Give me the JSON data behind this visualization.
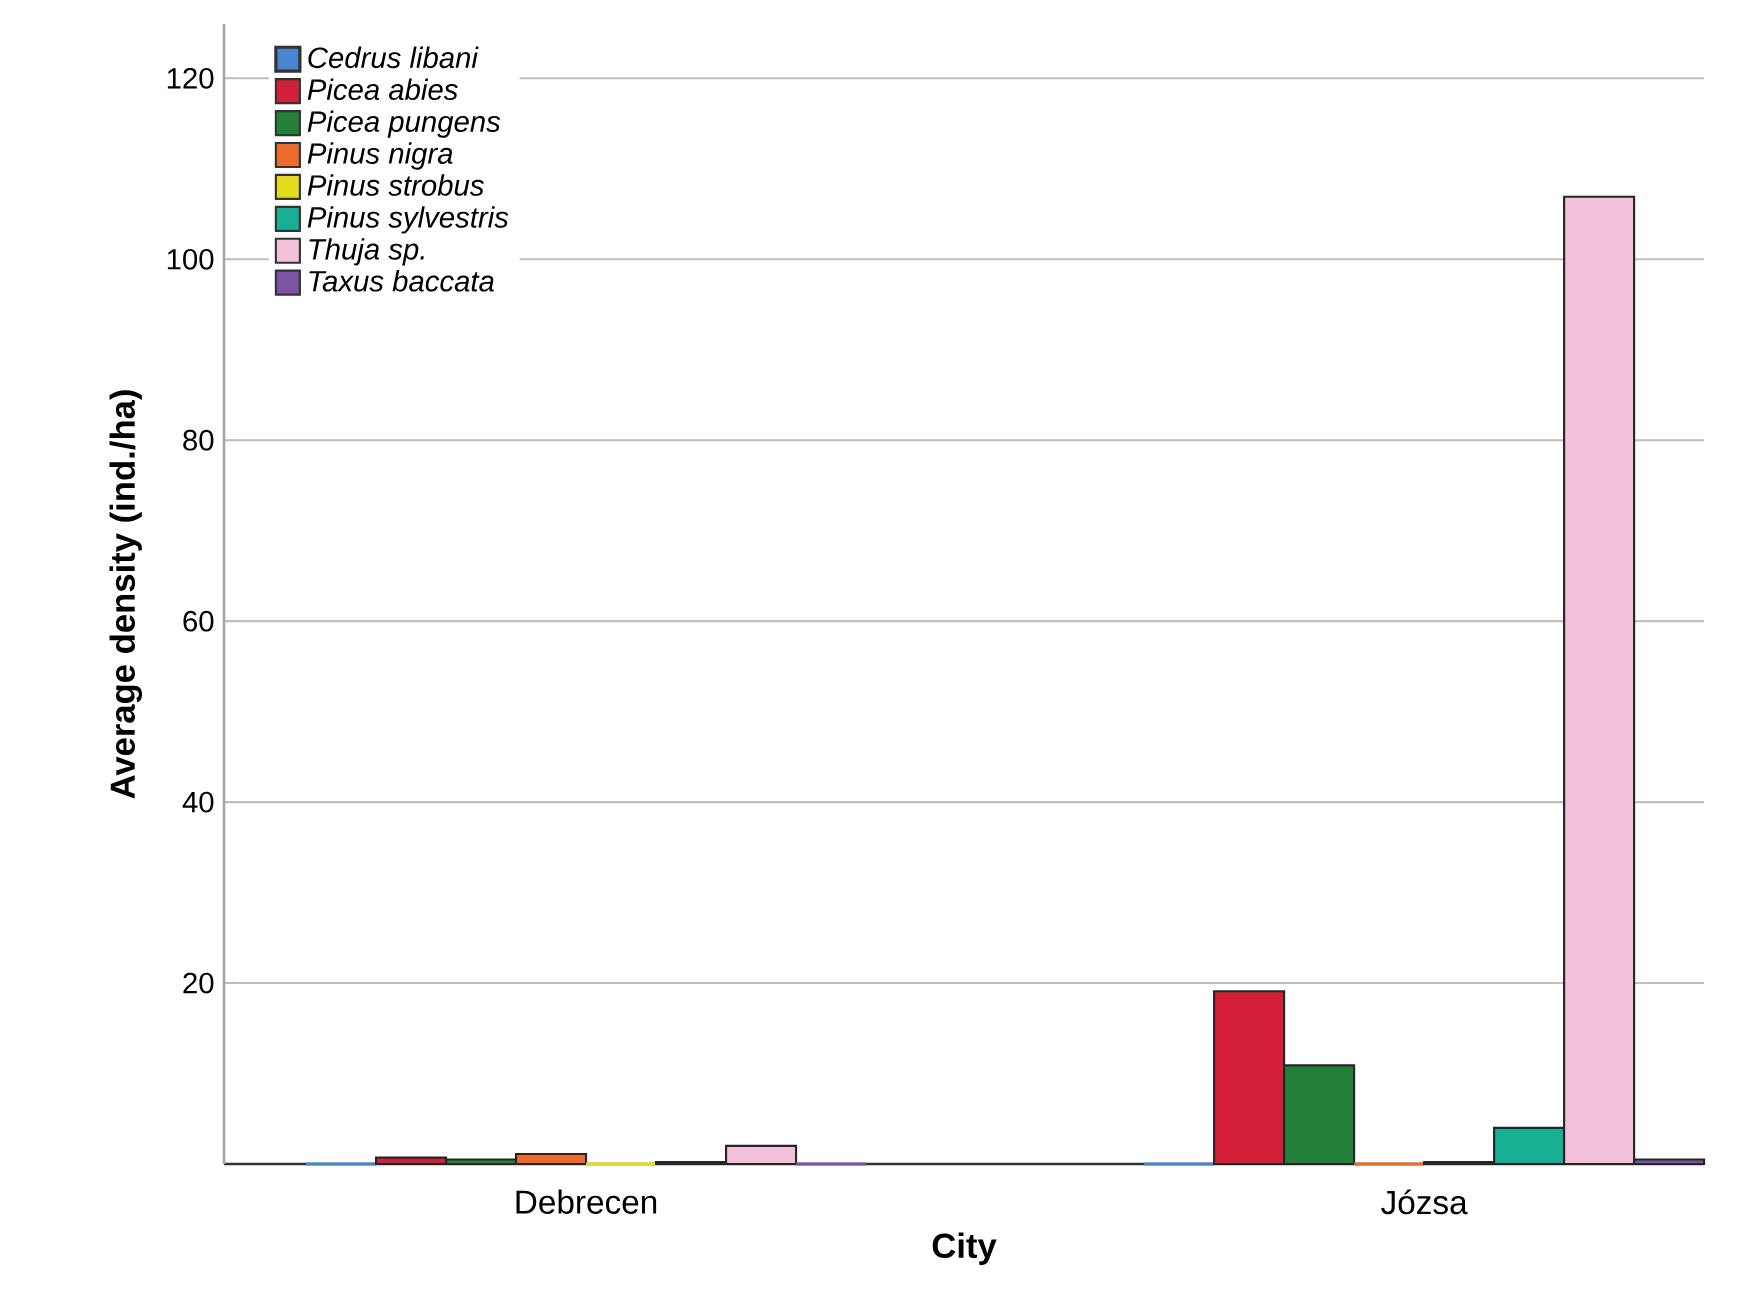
{
  "chart_data": {
    "type": "bar",
    "xlabel": "City",
    "ylabel": "Average density (ind./ha)",
    "categories": [
      "Debrecen",
      "Józsa"
    ],
    "series": [
      {
        "name": "Cedrus libani",
        "color": "#4a86d0",
        "values": [
          0,
          0
        ]
      },
      {
        "name": "Picea abies",
        "color": "#d31f37",
        "values": [
          0.7,
          19.1
        ]
      },
      {
        "name": "Picea pungens",
        "color": "#228039",
        "values": [
          0.5,
          10.9
        ]
      },
      {
        "name": "Pinus nigra",
        "color": "#ec6a2b",
        "values": [
          1.1,
          0
        ]
      },
      {
        "name": "Pinus strobus",
        "color": "#e6dc1e",
        "values": [
          0,
          0.2
        ]
      },
      {
        "name": "Pinus sylvestris",
        "color": "#17b095",
        "values": [
          0.2,
          4.0
        ]
      },
      {
        "name": "Thuja sp.",
        "color": "#f4c1da",
        "values": [
          2.0,
          106.9
        ]
      },
      {
        "name": "Taxus baccata",
        "color": "#7c52a5",
        "values": [
          0,
          0.5
        ]
      }
    ],
    "ylim": [
      0,
      126
    ],
    "yticks": [
      20,
      40,
      60,
      80,
      100,
      120
    ],
    "grid": "y",
    "legend": "top left"
  }
}
